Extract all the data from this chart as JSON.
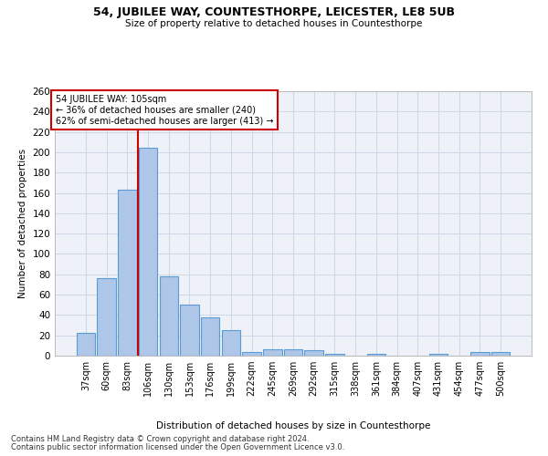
{
  "title": "54, JUBILEE WAY, COUNTESTHORPE, LEICESTER, LE8 5UB",
  "subtitle": "Size of property relative to detached houses in Countesthorpe",
  "xlabel": "Distribution of detached houses by size in Countesthorpe",
  "ylabel": "Number of detached properties",
  "categories": [
    "37sqm",
    "60sqm",
    "83sqm",
    "106sqm",
    "130sqm",
    "153sqm",
    "176sqm",
    "199sqm",
    "222sqm",
    "245sqm",
    "269sqm",
    "292sqm",
    "315sqm",
    "338sqm",
    "361sqm",
    "384sqm",
    "407sqm",
    "431sqm",
    "454sqm",
    "477sqm",
    "500sqm"
  ],
  "values": [
    22,
    76,
    163,
    204,
    78,
    50,
    38,
    25,
    4,
    6,
    6,
    5,
    2,
    0,
    2,
    0,
    0,
    2,
    0,
    4,
    4
  ],
  "bar_color": "#aec6e8",
  "bar_edge_color": "#5b9bd5",
  "grid_color": "#d0d8e8",
  "bg_color": "#eef2f8",
  "red_line_color": "#cc0000",
  "annotation_line1": "54 JUBILEE WAY: 105sqm",
  "annotation_line2": "← 36% of detached houses are smaller (240)",
  "annotation_line3": "62% of semi-detached houses are larger (413) →",
  "annotation_box_color": "#ffffff",
  "annotation_box_edge": "#cc0000",
  "footer1": "Contains HM Land Registry data © Crown copyright and database right 2024.",
  "footer2": "Contains public sector information licensed under the Open Government Licence v3.0.",
  "ylim": [
    0,
    260
  ],
  "yticks": [
    0,
    20,
    40,
    60,
    80,
    100,
    120,
    140,
    160,
    180,
    200,
    220,
    240,
    260
  ]
}
